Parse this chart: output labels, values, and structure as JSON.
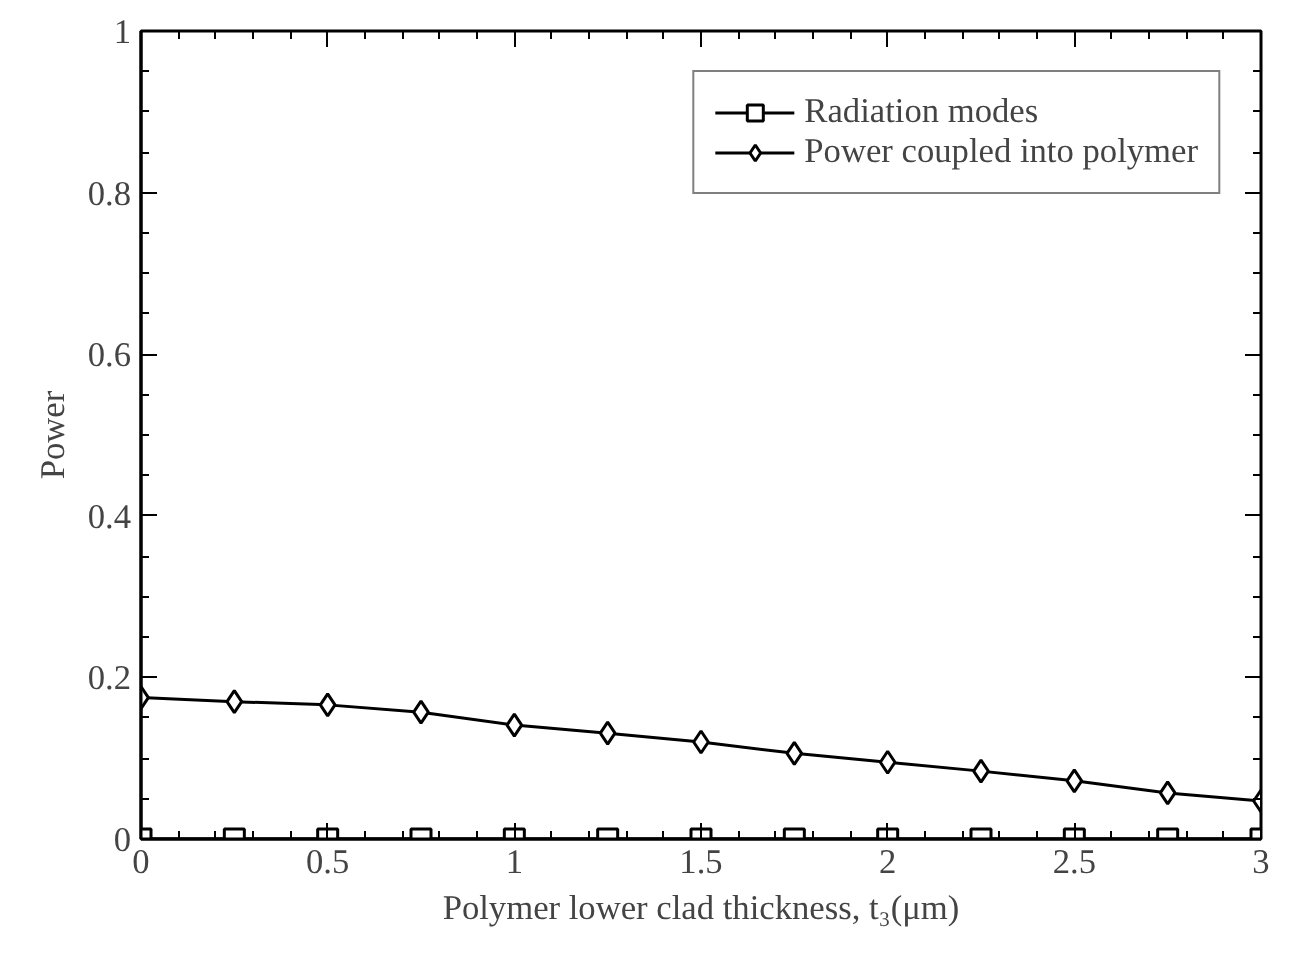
{
  "chart_data": {
    "type": "line",
    "xlabel": "Polymer lower clad thickness, t₃(μm)",
    "ylabel": "Power",
    "x": [
      0,
      0.25,
      0.5,
      0.75,
      1,
      1.25,
      1.5,
      1.75,
      2,
      2.25,
      2.5,
      2.75,
      3
    ],
    "series": [
      {
        "name": "Radiation modes",
        "color": "#000000",
        "marker": "square",
        "values": [
          0,
          0,
          0,
          0,
          0,
          0,
          0,
          0,
          0,
          0,
          0,
          0,
          0
        ]
      },
      {
        "name": "Power coupled into polymer",
        "color": "#000000",
        "marker": "diamond",
        "values": [
          0.175,
          0.17,
          0.166,
          0.157,
          0.141,
          0.131,
          0.12,
          0.106,
          0.095,
          0.084,
          0.072,
          0.057,
          0.047
        ]
      }
    ],
    "xlim": [
      0,
      3
    ],
    "ylim": [
      0,
      1
    ],
    "xticks": [
      0,
      0.5,
      1,
      1.5,
      2,
      2.5,
      3
    ],
    "yticks": [
      0,
      0.2,
      0.4,
      0.6,
      0.8,
      1
    ],
    "grid": false,
    "legend": "top right",
    "line_style": "solid"
  }
}
